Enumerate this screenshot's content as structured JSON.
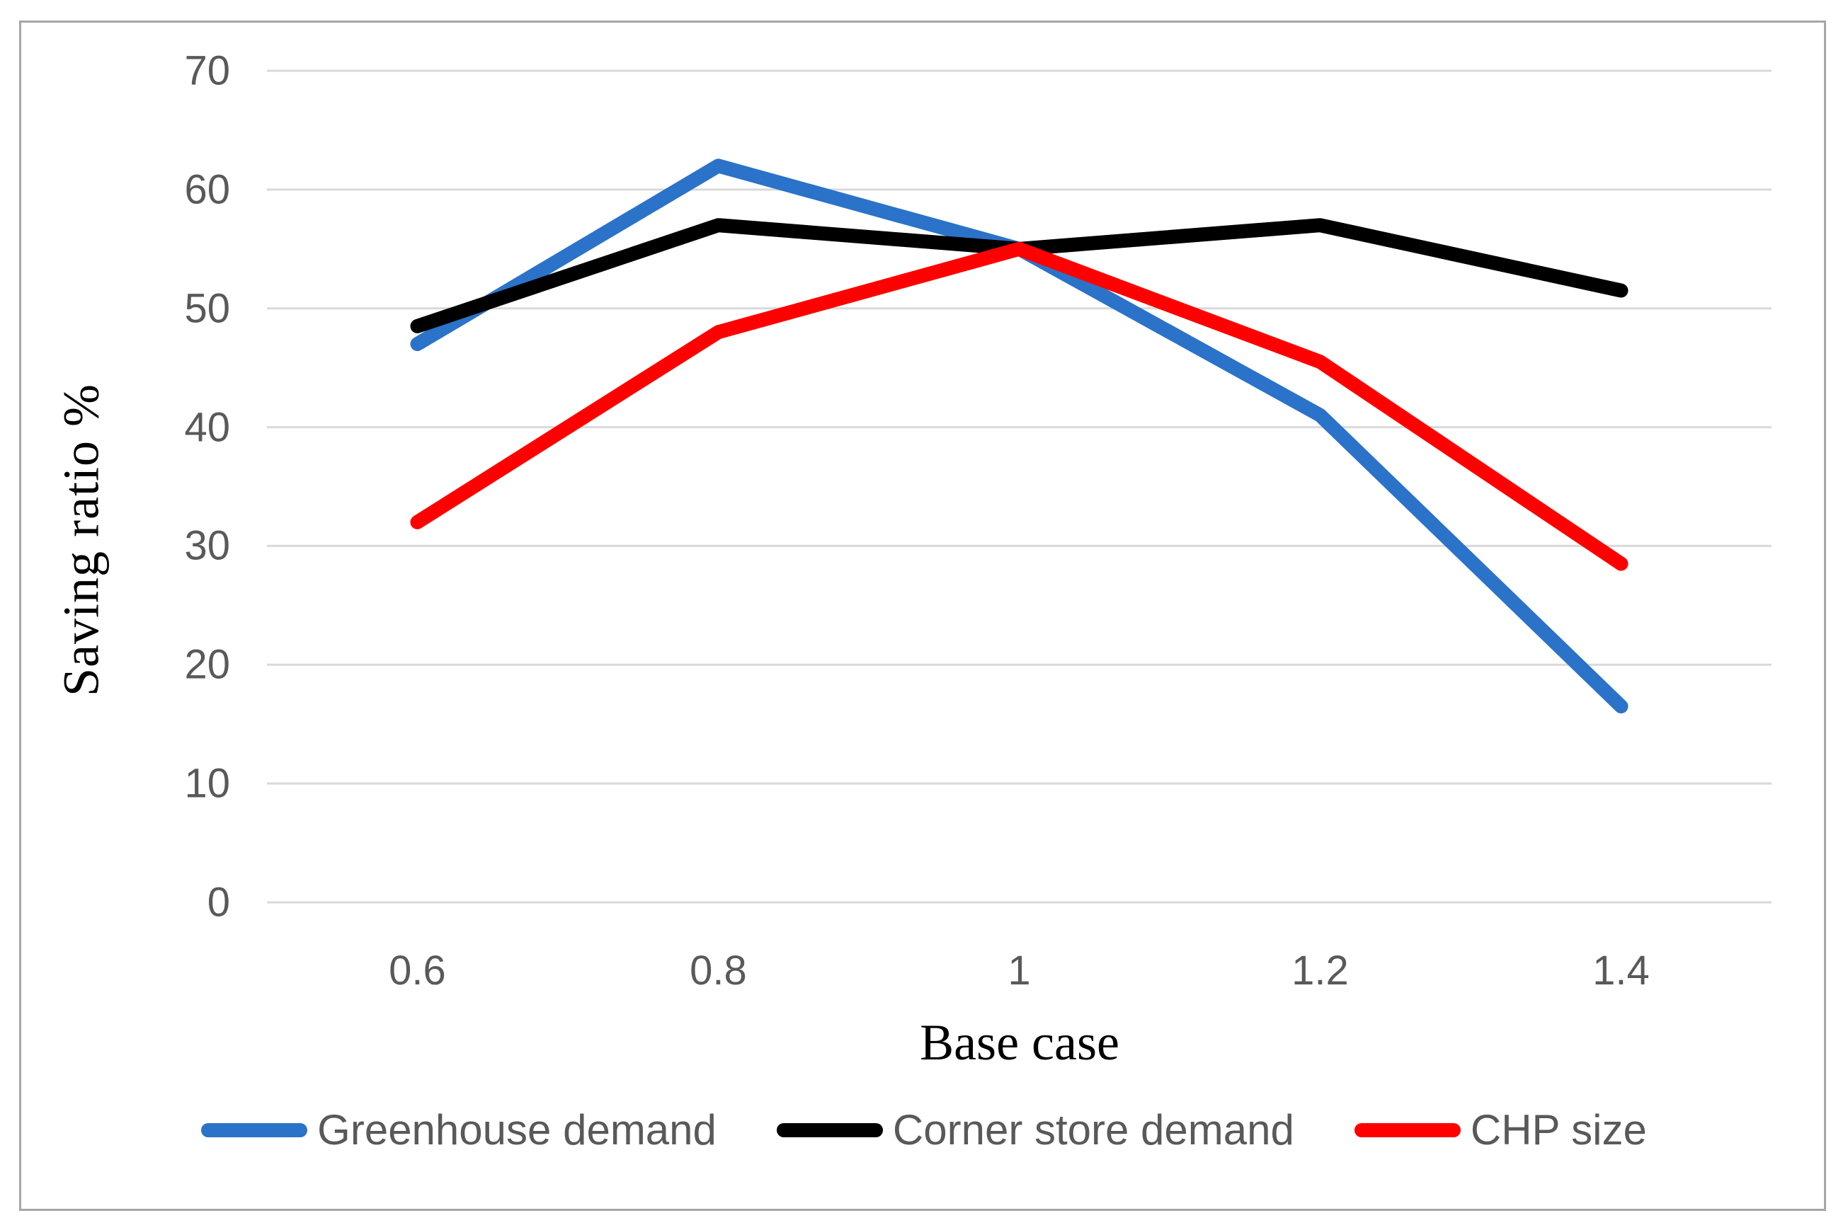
{
  "figure": {
    "border_color": "#a6a6a6",
    "background": "#ffffff"
  },
  "chart_data": {
    "type": "line",
    "title": "",
    "xlabel": "Base case",
    "ylabel": "Saving ratio %",
    "x": [
      0.6,
      0.8,
      1,
      1.2,
      1.4
    ],
    "x_tick_labels": [
      "0.6",
      "0.8",
      "1",
      "1.2",
      "1.4"
    ],
    "series": [
      {
        "name": "Greenhouse demand",
        "color": "#2b72c9",
        "values": [
          47,
          62,
          55,
          41,
          16.5
        ]
      },
      {
        "name": "Corner store demand",
        "color": "#000000",
        "values": [
          48.5,
          57,
          55,
          57,
          51.5
        ]
      },
      {
        "name": "CHP size",
        "color": "#ff0000",
        "values": [
          32,
          48,
          55,
          45.5,
          28.5
        ]
      }
    ],
    "ylim": [
      0,
      70
    ],
    "y_tick_step": 10,
    "y_tick_labels": [
      "0",
      "10",
      "20",
      "30",
      "40",
      "50",
      "60",
      "70"
    ],
    "grid": true,
    "gridline_color": "#d9d9d9",
    "tick_label_color": "#595959",
    "legend_position": "bottom",
    "line_width": 20
  }
}
